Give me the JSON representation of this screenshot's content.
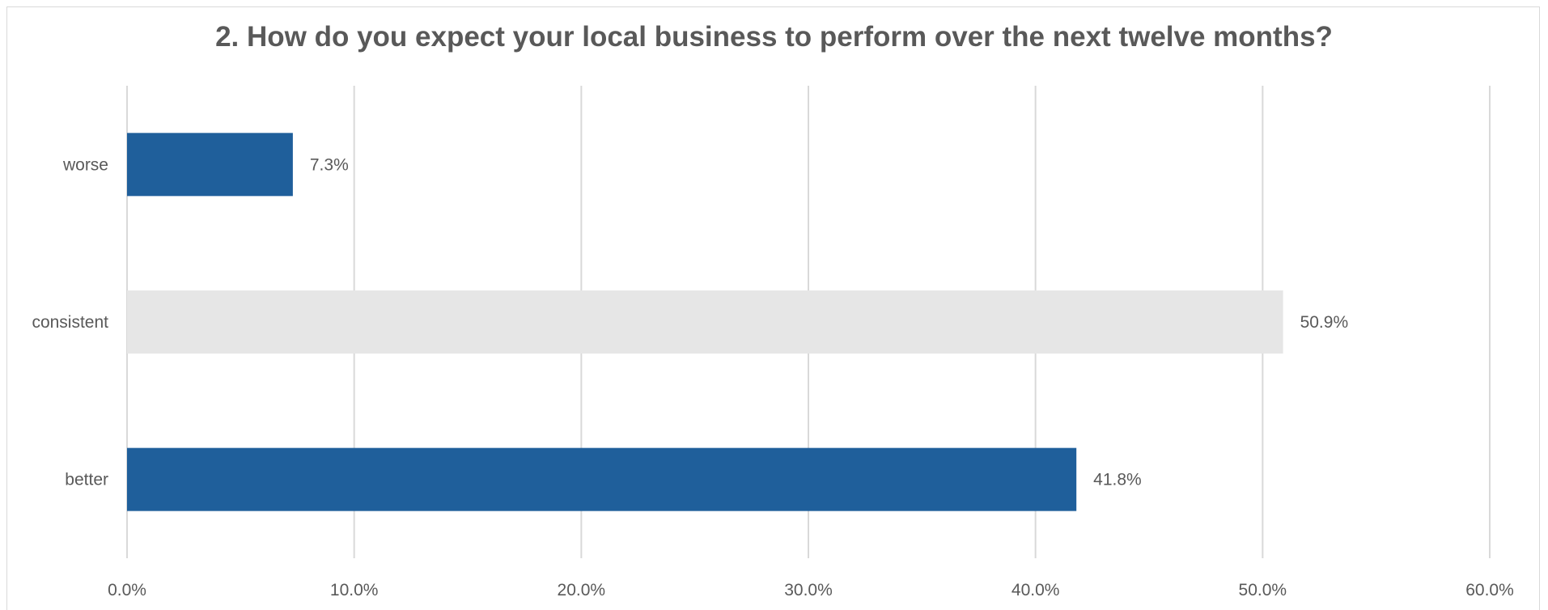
{
  "chart_data": {
    "type": "bar",
    "orientation": "horizontal",
    "title": "2. How do you expect your local business to perform over the next twelve months?",
    "categories": [
      "worse",
      "consistent",
      "better"
    ],
    "values": [
      7.3,
      50.9,
      41.8
    ],
    "data_labels": [
      "7.3%",
      "50.9%",
      "41.8%"
    ],
    "bar_colors": [
      "#1f5f9b",
      "#e6e6e6",
      "#1f5f9b"
    ],
    "xlim": [
      0,
      60
    ],
    "x_ticks": [
      0,
      10,
      20,
      30,
      40,
      50,
      60
    ],
    "x_tick_labels": [
      "0.0%",
      "10.0%",
      "20.0%",
      "30.0%",
      "40.0%",
      "50.0%",
      "60.0%"
    ],
    "xlabel": "",
    "ylabel": "",
    "grid": "vertical",
    "legend": "none"
  }
}
